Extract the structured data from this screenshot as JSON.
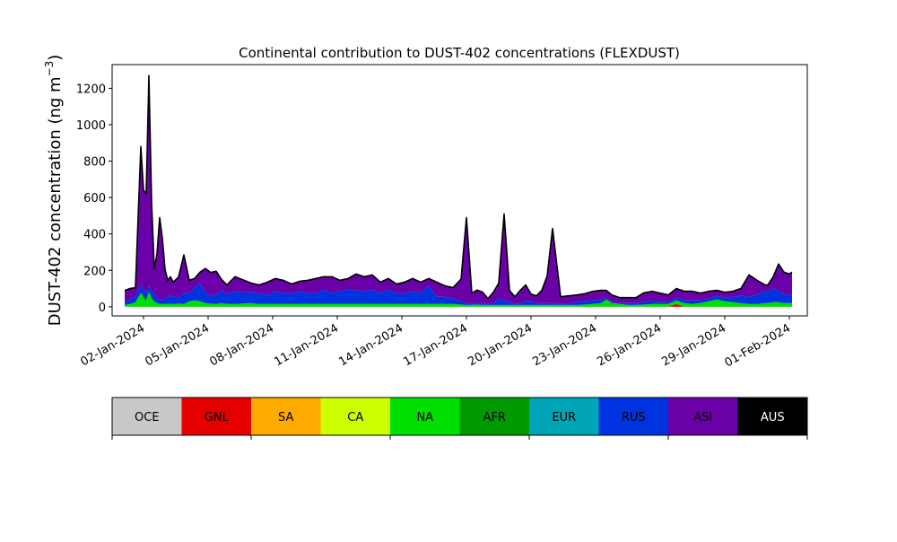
{
  "chart_data": {
    "type": "area",
    "stacked": true,
    "title": "Continental contribution to DUST-402 concentrations (FLEXDUST)",
    "xlabel": "",
    "ylabel": "DUST-402 concentration (ng m",
    "ylabel_superscript": "−3",
    "ylabel_close": ")",
    "ylim": [
      -50,
      1330
    ],
    "xlim": [
      "2023-12-31T13:00",
      "2024-02-01T20:00"
    ],
    "grid": false,
    "yticks": [
      0,
      200,
      400,
      600,
      800,
      1000,
      1200
    ],
    "xticks": [
      "02-Jan-2024",
      "05-Jan-2024",
      "08-Jan-2024",
      "11-Jan-2024",
      "14-Jan-2024",
      "17-Jan-2024",
      "20-Jan-2024",
      "23-Jan-2024",
      "26-Jan-2024",
      "29-Jan-2024",
      "01-Feb-2024"
    ],
    "xtick_dates": [
      "2024-01-02",
      "2024-01-05",
      "2024-01-08",
      "2024-01-11",
      "2024-01-14",
      "2024-01-17",
      "2024-01-20",
      "2024-01-23",
      "2024-01-26",
      "2024-01-29",
      "2024-02-01"
    ],
    "x": [
      "2024-01-01T03:00",
      "2024-01-01T09:00",
      "2024-01-01T15:00",
      "2024-01-01T21:00",
      "2024-01-02T00:00",
      "2024-01-02T03:00",
      "2024-01-02T06:00",
      "2024-01-02T09:00",
      "2024-01-02T12:00",
      "2024-01-02T15:00",
      "2024-01-02T18:00",
      "2024-01-02T21:00",
      "2024-01-03T00:00",
      "2024-01-03T03:00",
      "2024-01-03T06:00",
      "2024-01-03T09:00",
      "2024-01-03T15:00",
      "2024-01-03T21:00",
      "2024-01-04T03:00",
      "2024-01-04T09:00",
      "2024-01-04T15:00",
      "2024-01-04T21:00",
      "2024-01-05T03:00",
      "2024-01-05T09:00",
      "2024-01-05T15:00",
      "2024-01-05T21:00",
      "2024-01-06T06:00",
      "2024-01-06T15:00",
      "2024-01-07T00:00",
      "2024-01-07T09:00",
      "2024-01-07T18:00",
      "2024-01-08T03:00",
      "2024-01-08T12:00",
      "2024-01-08T21:00",
      "2024-01-09T06:00",
      "2024-01-09T15:00",
      "2024-01-10T00:00",
      "2024-01-10T09:00",
      "2024-01-10T18:00",
      "2024-01-11T03:00",
      "2024-01-11T12:00",
      "2024-01-11T21:00",
      "2024-01-12T06:00",
      "2024-01-12T15:00",
      "2024-01-13T00:00",
      "2024-01-13T09:00",
      "2024-01-13T18:00",
      "2024-01-14T03:00",
      "2024-01-14T12:00",
      "2024-01-14T21:00",
      "2024-01-15T06:00",
      "2024-01-15T15:00",
      "2024-01-16T00:00",
      "2024-01-16T09:00",
      "2024-01-16T18:00",
      "2024-01-17T00:00",
      "2024-01-17T06:00",
      "2024-01-17T12:00",
      "2024-01-17T18:00",
      "2024-01-18T00:00",
      "2024-01-18T06:00",
      "2024-01-18T12:00",
      "2024-01-18T18:00",
      "2024-01-19T00:00",
      "2024-01-19T06:00",
      "2024-01-19T12:00",
      "2024-01-19T18:00",
      "2024-01-20T00:00",
      "2024-01-20T06:00",
      "2024-01-20T12:00",
      "2024-01-20T18:00",
      "2024-01-21T00:00",
      "2024-01-21T09:00",
      "2024-01-21T18:00",
      "2024-01-22T03:00",
      "2024-01-22T12:00",
      "2024-01-22T21:00",
      "2024-01-23T06:00",
      "2024-01-23T12:00",
      "2024-01-23T18:00",
      "2024-01-24T03:00",
      "2024-01-24T12:00",
      "2024-01-24T21:00",
      "2024-01-25T06:00",
      "2024-01-25T15:00",
      "2024-01-26T00:00",
      "2024-01-26T09:00",
      "2024-01-26T18:00",
      "2024-01-27T03:00",
      "2024-01-27T12:00",
      "2024-01-27T21:00",
      "2024-01-28T06:00",
      "2024-01-28T15:00",
      "2024-01-29T00:00",
      "2024-01-29T09:00",
      "2024-01-29T18:00",
      "2024-01-30T03:00",
      "2024-01-30T12:00",
      "2024-01-30T21:00",
      "2024-01-31T00:00",
      "2024-01-31T06:00",
      "2024-01-31T12:00",
      "2024-01-31T18:00",
      "2024-02-01T00:00",
      "2024-02-01T03:00"
    ],
    "series": [
      {
        "name": "OCE",
        "color": "#c8c8c8",
        "values": [
          0,
          0,
          0,
          0,
          0,
          0,
          0,
          0,
          0,
          0,
          0,
          0,
          0,
          0,
          0,
          0,
          0,
          0,
          0,
          0,
          0,
          0,
          0,
          0,
          0,
          0,
          0,
          0,
          0,
          0,
          0,
          0,
          0,
          0,
          0,
          0,
          0,
          0,
          0,
          0,
          0,
          0,
          0,
          0,
          0,
          0,
          0,
          0,
          0,
          0,
          0,
          0,
          0,
          0,
          0,
          0,
          0,
          0,
          0,
          0,
          0,
          0,
          0,
          0,
          0,
          0,
          0,
          0,
          0,
          0,
          0,
          0,
          0,
          0,
          0,
          0,
          0,
          0,
          0,
          0,
          0,
          0,
          0,
          0,
          0,
          0,
          0,
          0,
          0,
          0,
          0,
          0,
          0,
          0,
          0,
          0,
          0,
          0,
          0,
          0,
          0,
          0,
          0,
          0,
          0
        ]
      },
      {
        "name": "GNL",
        "color": "#e50000",
        "values": [
          0,
          0,
          0,
          0,
          0,
          0,
          0,
          0,
          0,
          0,
          0,
          0,
          0,
          0,
          0,
          0,
          0,
          0,
          0,
          0,
          0,
          0,
          0,
          0,
          0,
          0,
          0,
          0,
          0,
          0,
          0,
          0,
          0,
          0,
          0,
          0,
          0,
          0,
          0,
          0,
          0,
          0,
          0,
          0,
          0,
          0,
          0,
          0,
          0,
          0,
          0,
          0,
          0,
          0,
          0,
          0,
          0,
          0,
          0,
          0,
          0,
          0,
          0,
          0,
          0,
          0,
          0,
          0,
          0,
          0,
          0,
          0,
          0,
          0,
          0,
          0,
          0,
          0,
          0,
          0,
          0,
          0,
          0,
          0,
          0,
          0,
          0,
          15,
          0,
          0,
          0,
          0,
          0,
          0,
          0,
          0,
          0,
          0,
          0,
          0,
          0,
          0,
          0,
          0,
          0
        ]
      },
      {
        "name": "SA",
        "color": "#ffaa00",
        "values": [
          0,
          0,
          0,
          0,
          0,
          0,
          0,
          0,
          0,
          0,
          0,
          0,
          0,
          0,
          0,
          0,
          0,
          0,
          0,
          0,
          0,
          0,
          0,
          0,
          0,
          0,
          0,
          0,
          0,
          0,
          0,
          0,
          0,
          0,
          0,
          0,
          0,
          0,
          0,
          0,
          0,
          0,
          0,
          0,
          0,
          0,
          0,
          0,
          0,
          0,
          0,
          0,
          0,
          0,
          0,
          0,
          0,
          0,
          0,
          0,
          0,
          0,
          0,
          0,
          0,
          0,
          0,
          0,
          0,
          0,
          0,
          0,
          0,
          0,
          0,
          0,
          0,
          0,
          0,
          0,
          0,
          0,
          0,
          0,
          0,
          0,
          0,
          0,
          0,
          0,
          0,
          0,
          0,
          0,
          0,
          0,
          0,
          0,
          0,
          0,
          0,
          0,
          0,
          0,
          0
        ]
      },
      {
        "name": "CA",
        "color": "#ccff00",
        "values": [
          0,
          0,
          0,
          0,
          0,
          0,
          0,
          0,
          0,
          0,
          0,
          0,
          0,
          0,
          0,
          0,
          0,
          0,
          0,
          0,
          0,
          0,
          0,
          0,
          0,
          0,
          0,
          0,
          0,
          0,
          0,
          0,
          0,
          0,
          0,
          0,
          0,
          0,
          0,
          0,
          0,
          0,
          0,
          0,
          0,
          0,
          0,
          0,
          0,
          0,
          0,
          0,
          0,
          0,
          0,
          0,
          0,
          0,
          0,
          0,
          0,
          0,
          0,
          0,
          0,
          0,
          0,
          0,
          0,
          0,
          0,
          0,
          0,
          0,
          0,
          0,
          0,
          0,
          0,
          0,
          0,
          0,
          0,
          0,
          0,
          0,
          0,
          0,
          0,
          0,
          0,
          0,
          0,
          0,
          0,
          0,
          0,
          0,
          0,
          0,
          0,
          0,
          0,
          0,
          0
        ]
      },
      {
        "name": "NA",
        "color": "#00e000",
        "values": [
          10,
          15,
          25,
          75,
          45,
          30,
          75,
          40,
          25,
          20,
          15,
          15,
          15,
          15,
          15,
          15,
          18,
          15,
          30,
          35,
          30,
          20,
          18,
          15,
          20,
          15,
          15,
          18,
          20,
          15,
          15,
          15,
          15,
          15,
          15,
          15,
          15,
          15,
          15,
          15,
          15,
          15,
          15,
          15,
          15,
          15,
          15,
          15,
          15,
          15,
          15,
          15,
          15,
          15,
          12,
          10,
          10,
          12,
          10,
          10,
          10,
          10,
          10,
          10,
          10,
          10,
          10,
          10,
          10,
          10,
          10,
          10,
          10,
          10,
          10,
          12,
          15,
          20,
          40,
          20,
          15,
          10,
          10,
          12,
          15,
          15,
          15,
          20,
          20,
          15,
          20,
          30,
          40,
          30,
          25,
          20,
          15,
          15,
          20,
          20,
          25,
          25,
          20,
          20,
          20
        ]
      },
      {
        "name": "AFR",
        "color": "#009a00",
        "values": [
          0,
          0,
          0,
          0,
          15,
          10,
          10,
          10,
          5,
          0,
          0,
          0,
          0,
          0,
          0,
          0,
          0,
          0,
          0,
          0,
          0,
          0,
          0,
          0,
          0,
          0,
          0,
          0,
          0,
          0,
          0,
          0,
          0,
          0,
          0,
          0,
          0,
          0,
          0,
          0,
          0,
          0,
          0,
          0,
          0,
          0,
          0,
          0,
          0,
          0,
          0,
          0,
          0,
          0,
          0,
          0,
          0,
          0,
          0,
          0,
          0,
          0,
          0,
          0,
          0,
          0,
          0,
          0,
          0,
          0,
          0,
          0,
          0,
          0,
          0,
          0,
          0,
          0,
          0,
          0,
          0,
          0,
          0,
          0,
          0,
          0,
          0,
          0,
          0,
          0,
          0,
          0,
          0,
          0,
          0,
          0,
          0,
          0,
          0,
          0,
          0,
          0,
          0,
          0,
          0
        ]
      },
      {
        "name": "EUR",
        "color": "#00a6b8",
        "values": [
          0,
          0,
          0,
          0,
          0,
          0,
          0,
          0,
          0,
          0,
          0,
          0,
          0,
          0,
          0,
          0,
          0,
          0,
          0,
          0,
          0,
          0,
          0,
          0,
          0,
          0,
          0,
          0,
          0,
          0,
          0,
          0,
          0,
          0,
          0,
          0,
          0,
          0,
          0,
          0,
          0,
          0,
          0,
          0,
          0,
          0,
          0,
          0,
          0,
          0,
          0,
          0,
          0,
          0,
          0,
          0,
          0,
          0,
          0,
          0,
          0,
          0,
          0,
          0,
          0,
          0,
          0,
          0,
          0,
          0,
          0,
          0,
          0,
          0,
          0,
          0,
          0,
          0,
          0,
          0,
          0,
          0,
          0,
          0,
          0,
          0,
          0,
          0,
          0,
          0,
          0,
          0,
          0,
          0,
          0,
          0,
          0,
          0,
          0,
          0,
          0,
          0,
          0,
          0,
          0
        ]
      },
      {
        "name": "RUS",
        "color": "#0033e0",
        "values": [
          20,
          25,
          30,
          45,
          40,
          35,
          30,
          40,
          40,
          30,
          25,
          20,
          30,
          40,
          50,
          40,
          35,
          60,
          45,
          70,
          100,
          60,
          45,
          50,
          70,
          55,
          70,
          60,
          60,
          60,
          50,
          70,
          60,
          60,
          70,
          60,
          60,
          80,
          60,
          70,
          80,
          75,
          70,
          80,
          60,
          80,
          60,
          60,
          70,
          60,
          100,
          40,
          40,
          30,
          20,
          10,
          5,
          10,
          10,
          5,
          10,
          40,
          20,
          20,
          5,
          10,
          20,
          20,
          10,
          10,
          10,
          10,
          5,
          10,
          15,
          20,
          20,
          20,
          10,
          5,
          5,
          10,
          10,
          15,
          20,
          10,
          10,
          15,
          15,
          20,
          15,
          15,
          20,
          20,
          30,
          40,
          40,
          50,
          70,
          60,
          80,
          60,
          50,
          40,
          50
        ]
      },
      {
        "name": "ASI",
        "color": "#6a00a8",
        "values": [
          60,
          60,
          50,
          760,
          540,
          545,
          1155,
          480,
          140,
          240,
          450,
          340,
          160,
          90,
          100,
          80,
          110,
          210,
          70,
          50,
          60,
          130,
          125,
          130,
          60,
          50,
          80,
          70,
          50,
          45,
          70,
          70,
          70,
          50,
          55,
          70,
          80,
          70,
          90,
          60,
          60,
          90,
          80,
          80,
          60,
          60,
          50,
          60,
          70,
          60,
          40,
          80,
          60,
          60,
          120,
          470,
          60,
          70,
          60,
          30,
          60,
          80,
          480,
          60,
          40,
          70,
          90,
          40,
          40,
          70,
          150,
          410,
          40,
          40,
          40,
          40,
          50,
          50,
          40,
          40,
          30,
          30,
          30,
          50,
          50,
          50,
          40,
          50,
          50,
          50,
          40,
          40,
          30,
          30,
          30,
          40,
          120,
          80,
          30,
          40,
          60,
          150,
          120,
          120,
          120
        ]
      },
      {
        "name": "AUS",
        "color": "#000000",
        "values": [
          0,
          0,
          0,
          0,
          0,
          0,
          0,
          0,
          0,
          0,
          0,
          0,
          0,
          0,
          0,
          0,
          0,
          0,
          0,
          0,
          0,
          0,
          0,
          0,
          0,
          0,
          0,
          0,
          0,
          0,
          0,
          0,
          0,
          0,
          0,
          0,
          0,
          0,
          0,
          0,
          0,
          0,
          0,
          0,
          0,
          0,
          0,
          0,
          0,
          0,
          0,
          0,
          0,
          0,
          0,
          0,
          0,
          0,
          0,
          0,
          0,
          0,
          0,
          0,
          0,
          0,
          0,
          0,
          0,
          0,
          0,
          0,
          0,
          0,
          0,
          0,
          0,
          0,
          0,
          0,
          0,
          0,
          0,
          0,
          0,
          0,
          0,
          0,
          0,
          0,
          0,
          0,
          0,
          0,
          0,
          0,
          0,
          0,
          0,
          0,
          0,
          0,
          0,
          0,
          0
        ]
      }
    ],
    "total_line_color": "#000000",
    "legend_position": "bottom"
  }
}
